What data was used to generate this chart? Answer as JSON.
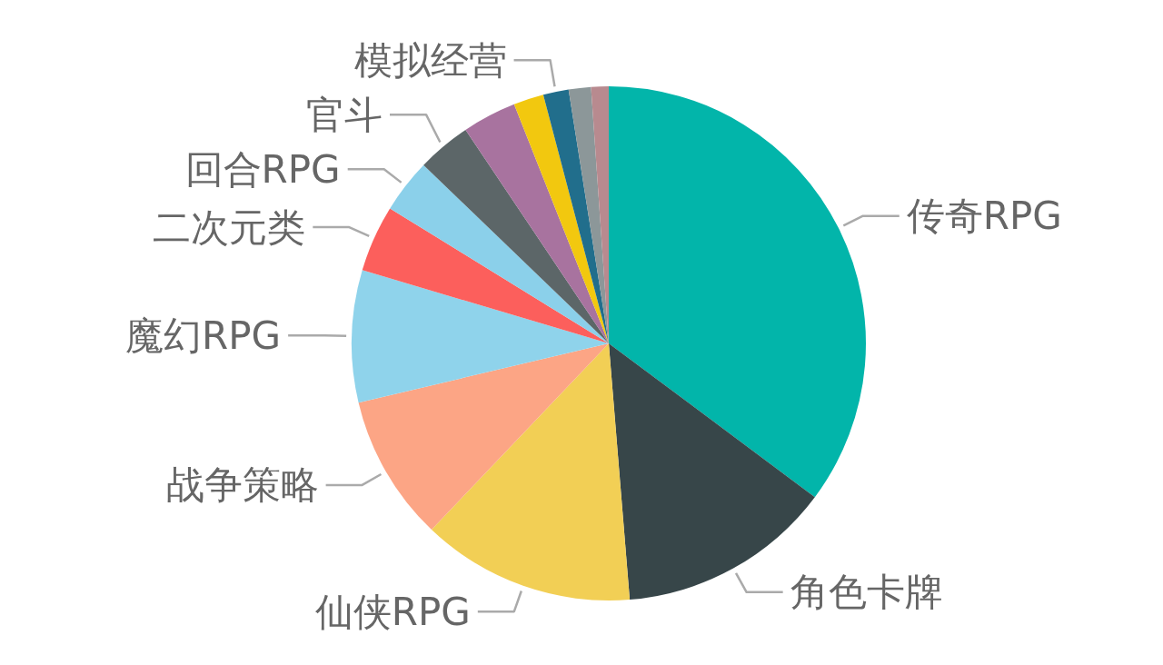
{
  "chart_data": {
    "type": "pie",
    "categories": [
      "传奇RPG",
      "角色卡牌",
      "仙侠RPG",
      "战争策略",
      "魔幻RPG",
      "二次元类",
      "回合RPG",
      "官斗",
      null,
      null,
      "模拟经营",
      null,
      null
    ],
    "values": [
      35.2,
      13.5,
      13.4,
      9.2,
      8.3,
      4.2,
      3.4,
      3.4,
      3.4,
      1.9,
      1.6,
      1.4,
      1.1
    ],
    "colors": [
      "#02b5aa",
      "#374649",
      "#f2cf55",
      "#fca585",
      "#8fd3eb",
      "#fc5f5c",
      "#8bd0ea",
      "#5c6668",
      "#a8739f",
      "#f2c80f",
      "#216e8c",
      "#8c9799",
      "#b88a8f"
    ]
  }
}
